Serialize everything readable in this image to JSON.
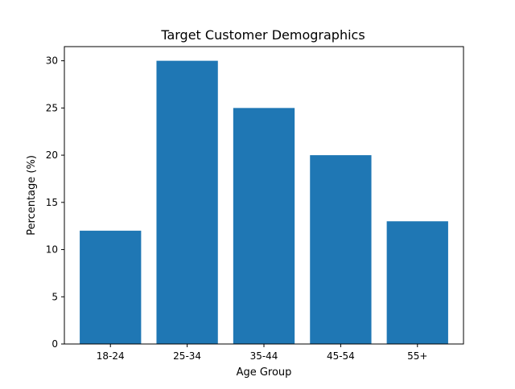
{
  "chart_data": {
    "type": "bar",
    "title": "Target Customer Demographics",
    "xlabel": "Age Group",
    "ylabel": "Percentage (%)",
    "categories": [
      "18-24",
      "25-34",
      "35-44",
      "45-54",
      "55+"
    ],
    "values": [
      12,
      30,
      25,
      20,
      13
    ],
    "ylim": [
      0,
      31.5
    ],
    "yticks": [
      0,
      5,
      10,
      15,
      20,
      25,
      30
    ],
    "grid": false,
    "bar_color": "#1f77b4"
  }
}
